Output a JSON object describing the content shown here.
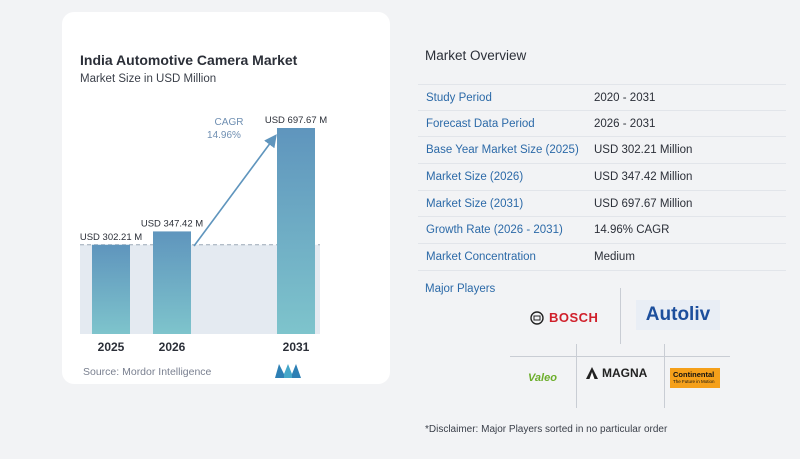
{
  "chart_card": {
    "title": "India Automotive Camera Market",
    "subtitle": "Market Size in USD Million",
    "source": "Source:  Mordor Intelligence"
  },
  "chart_data": {
    "type": "bar",
    "title": "India Automotive Camera Market",
    "subtitle": "Market Size in USD Million",
    "categories": [
      "2025",
      "2026",
      "2031"
    ],
    "values": [
      302.21,
      347.42,
      697.67
    ],
    "data_labels": [
      "USD 302.21 M",
      "USD 347.42 M",
      "USD 697.67 M"
    ],
    "annotation": {
      "label": "CAGR",
      "value": "14.96%"
    },
    "ylim": [
      0,
      720
    ],
    "colors": {
      "bar_top": "#5f95bd",
      "bar_bottom": "#7ec4cc",
      "band": "#e4eaf1",
      "arrow": "#5f95bd",
      "dashed": "#9aa7b5"
    }
  },
  "overview": {
    "title": "Market Overview",
    "rows": [
      {
        "label": "Study Period",
        "value": "2020 - 2031"
      },
      {
        "label": "Forecast Data Period",
        "value": "2026 - 2031"
      },
      {
        "label": "Base Year Market Size (2025)",
        "value": "USD 302.21 Million"
      },
      {
        "label": "Market Size (2026)",
        "value": "USD 347.42 Million"
      },
      {
        "label": "Market Size (2031)",
        "value": "USD 697.67 Million"
      },
      {
        "label": "Growth Rate (2026 - 2031)",
        "value": "14.96% CAGR"
      },
      {
        "label": "Market Concentration",
        "value": "Medium"
      }
    ]
  },
  "players": {
    "title": "Major Players",
    "logos": [
      "BOSCH",
      "Autoliv",
      "Valeo",
      "MAGNA",
      "Continental"
    ],
    "continental_tagline": "The Future in Motion"
  },
  "disclaimer": "*Disclaimer: Major Players sorted in no particular order"
}
